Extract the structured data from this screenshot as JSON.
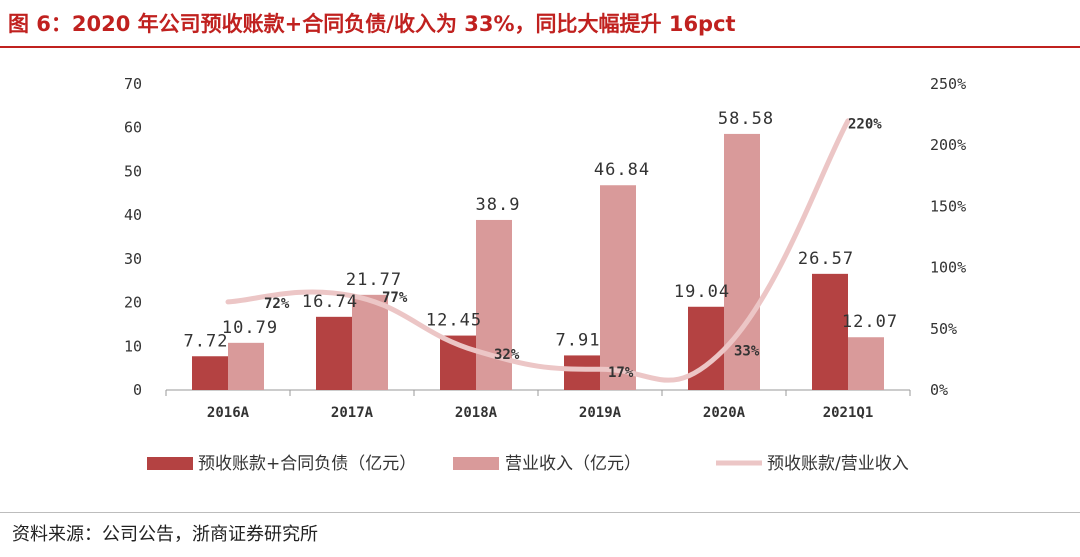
{
  "header": {
    "title": "图 6：2020 年公司预收账款+合同负债/收入为 33%，同比大幅提升 16pct"
  },
  "footer": {
    "source": "资料来源：公司公告，浙商证券研究所"
  },
  "colors": {
    "series1": "#b44242",
    "series2": "#d99a9a",
    "line": "#ecc6c6",
    "title": "#c0211f"
  },
  "chart_data": {
    "type": "bar",
    "categories": [
      "2016A",
      "2017A",
      "2018A",
      "2019A",
      "2020A",
      "2021Q1"
    ],
    "series": [
      {
        "name": "预收账款+合同负债（亿元）",
        "type": "bar",
        "axis": "left",
        "values": [
          7.72,
          16.74,
          12.45,
          7.91,
          19.04,
          26.57
        ],
        "labels": [
          "7.72",
          "16.74",
          "12.45",
          "7.91",
          "19.04",
          "26.57"
        ]
      },
      {
        "name": "营业收入（亿元）",
        "type": "bar",
        "axis": "left",
        "values": [
          10.79,
          21.77,
          38.9,
          46.84,
          58.58,
          12.07
        ],
        "labels": [
          "10.79",
          "21.77",
          "38.9",
          "46.84",
          "58.58",
          "12.07"
        ]
      },
      {
        "name": "预收账款/营业收入",
        "type": "line",
        "axis": "right",
        "values": [
          72,
          77,
          32,
          17,
          33,
          220
        ],
        "labels": [
          "72%",
          "77%",
          "32%",
          "17%",
          "33%",
          "220%"
        ]
      }
    ],
    "y_left": {
      "min": 0,
      "max": 70,
      "ticks": [
        "0",
        "10",
        "20",
        "30",
        "40",
        "50",
        "60",
        "70"
      ]
    },
    "y_right": {
      "min": 0,
      "max": 250,
      "ticks": [
        "0%",
        "50%",
        "100%",
        "150%",
        "200%",
        "250%"
      ]
    },
    "legend": "bottom",
    "grid": false
  }
}
